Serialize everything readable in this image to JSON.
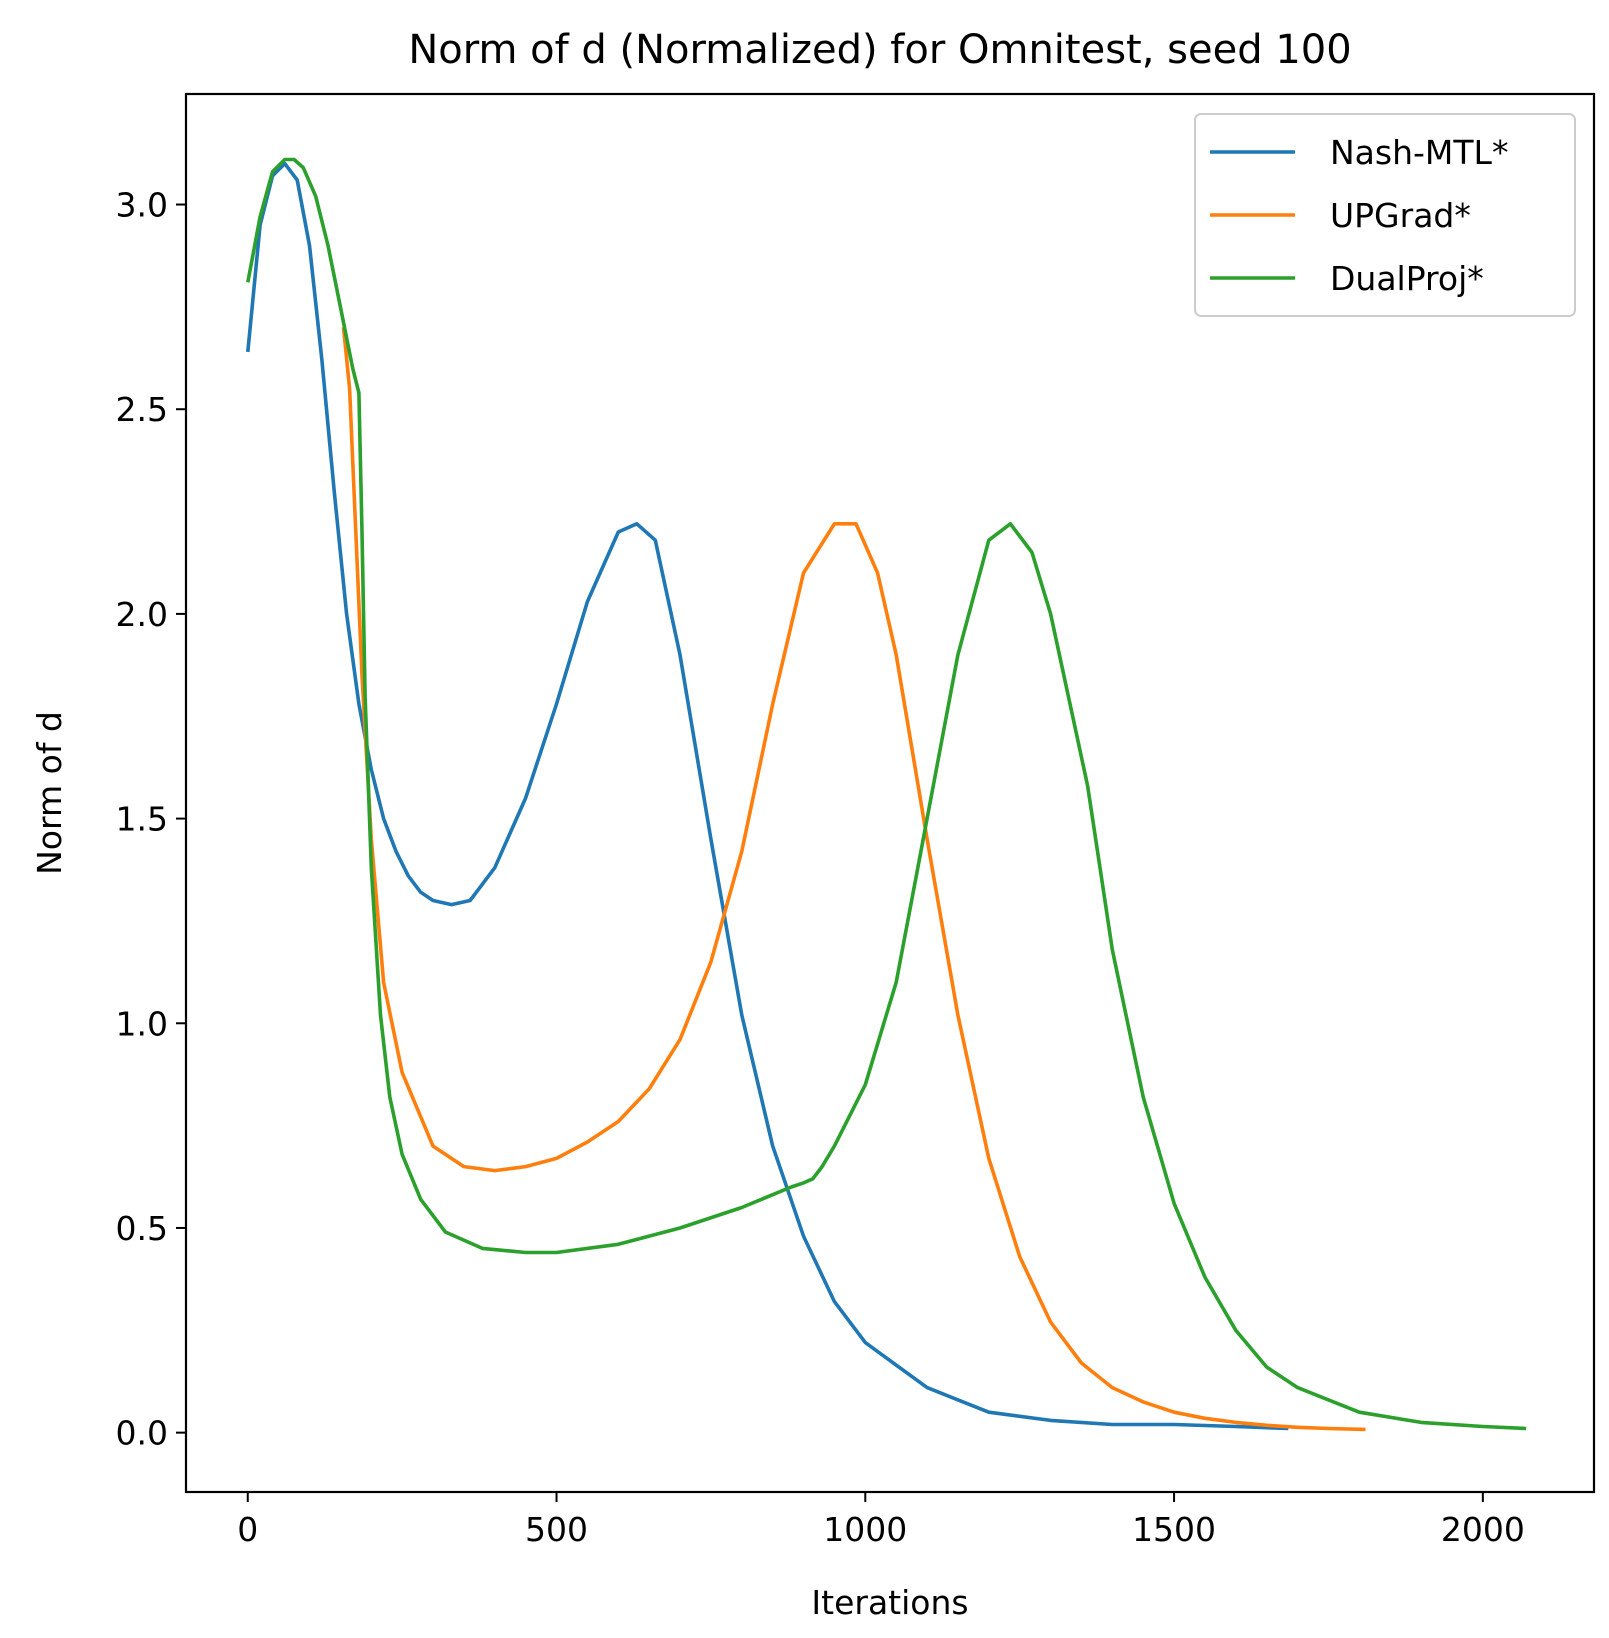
{
  "chart_data": {
    "type": "line",
    "title": "Norm of d (Normalized) for Omnitest, seed 100",
    "xlabel": "Iterations",
    "ylabel": "Norm of d",
    "xlim": [
      -100,
      2180
    ],
    "ylim": [
      -0.145,
      3.27
    ],
    "xticks": [
      0,
      500,
      1000,
      1500,
      2000
    ],
    "xtick_labels": [
      "0",
      "500",
      "1000",
      "1500",
      "2000"
    ],
    "yticks": [
      0.0,
      0.5,
      1.0,
      1.5,
      2.0,
      2.5,
      3.0
    ],
    "ytick_labels": [
      "0.0",
      "0.5",
      "1.0",
      "1.5",
      "2.0",
      "2.5",
      "3.0"
    ],
    "grid": false,
    "legend_position": "top-right",
    "series": [
      {
        "name": "Nash-MTL*",
        "color": "#1f77b4",
        "x": [
          0,
          20,
          40,
          60,
          80,
          100,
          120,
          140,
          160,
          180,
          200,
          220,
          240,
          260,
          280,
          300,
          330,
          360,
          400,
          450,
          500,
          550,
          600,
          630,
          660,
          700,
          750,
          800,
          850,
          900,
          950,
          1000,
          1100,
          1200,
          1300,
          1400,
          1500,
          1600,
          1685
        ],
        "y": [
          2.64,
          2.95,
          3.07,
          3.1,
          3.06,
          2.9,
          2.62,
          2.3,
          2.0,
          1.78,
          1.62,
          1.5,
          1.42,
          1.36,
          1.32,
          1.3,
          1.29,
          1.3,
          1.38,
          1.55,
          1.78,
          2.03,
          2.2,
          2.22,
          2.18,
          1.9,
          1.45,
          1.02,
          0.7,
          0.48,
          0.32,
          0.22,
          0.11,
          0.05,
          0.03,
          0.02,
          0.02,
          0.015,
          0.01
        ]
      },
      {
        "name": "UPGrad*",
        "color": "#ff7f0e",
        "x": [
          155,
          165,
          175,
          185,
          200,
          220,
          250,
          300,
          350,
          400,
          450,
          500,
          550,
          600,
          650,
          700,
          750,
          800,
          850,
          900,
          950,
          985,
          1020,
          1050,
          1100,
          1150,
          1200,
          1250,
          1300,
          1350,
          1400,
          1450,
          1500,
          1550,
          1600,
          1650,
          1700,
          1750,
          1810
        ],
        "y": [
          2.7,
          2.55,
          2.2,
          1.85,
          1.45,
          1.1,
          0.88,
          0.7,
          0.65,
          0.64,
          0.65,
          0.67,
          0.71,
          0.76,
          0.84,
          0.96,
          1.15,
          1.42,
          1.78,
          2.1,
          2.22,
          2.22,
          2.1,
          1.9,
          1.45,
          1.02,
          0.67,
          0.43,
          0.27,
          0.17,
          0.11,
          0.075,
          0.05,
          0.035,
          0.025,
          0.018,
          0.013,
          0.01,
          0.008
        ]
      },
      {
        "name": "DualProj*",
        "color": "#2ca02c",
        "x": [
          0,
          20,
          40,
          60,
          75,
          90,
          110,
          130,
          150,
          170,
          180,
          185,
          190,
          200,
          215,
          230,
          250,
          280,
          320,
          380,
          450,
          500,
          600,
          700,
          800,
          880,
          900,
          915,
          930,
          950,
          1000,
          1050,
          1100,
          1150,
          1200,
          1235,
          1270,
          1300,
          1340,
          1360,
          1380,
          1400,
          1450,
          1500,
          1550,
          1600,
          1650,
          1700,
          1800,
          1900,
          2000,
          2070
        ],
        "y": [
          2.81,
          2.97,
          3.08,
          3.11,
          3.11,
          3.09,
          3.02,
          2.9,
          2.75,
          2.6,
          2.54,
          2.2,
          1.8,
          1.38,
          1.02,
          0.82,
          0.68,
          0.57,
          0.49,
          0.45,
          0.44,
          0.44,
          0.46,
          0.5,
          0.55,
          0.6,
          0.61,
          0.62,
          0.65,
          0.7,
          0.85,
          1.1,
          1.5,
          1.9,
          2.18,
          2.22,
          2.15,
          2.0,
          1.72,
          1.58,
          1.38,
          1.18,
          0.82,
          0.56,
          0.38,
          0.25,
          0.16,
          0.11,
          0.05,
          0.025,
          0.015,
          0.01
        ]
      }
    ]
  }
}
